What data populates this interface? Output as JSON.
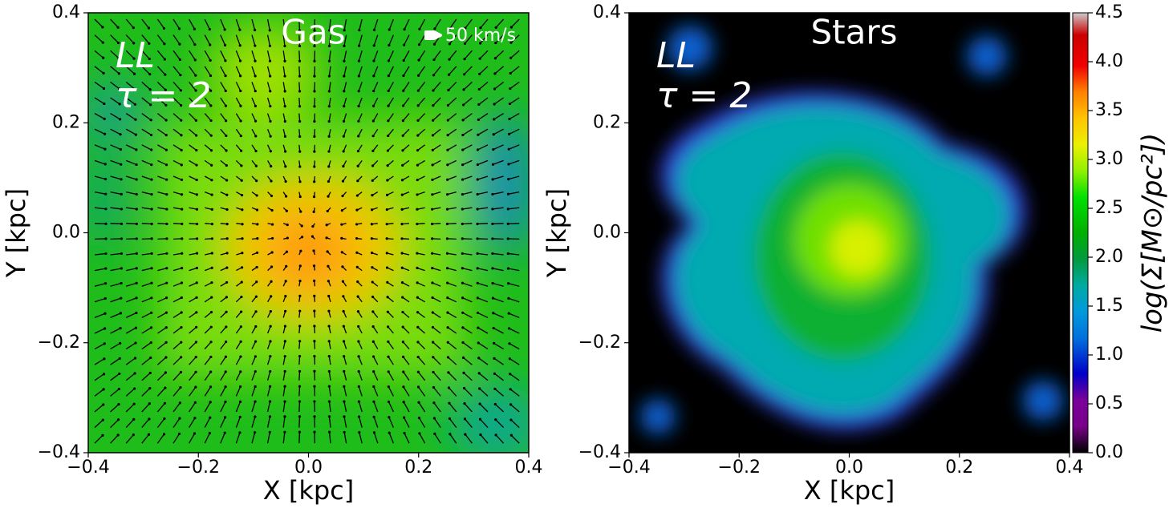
{
  "chart_data": [
    {
      "type": "heatmap",
      "title": "Gas",
      "annotation_lines": [
        "LL",
        "τ = 2"
      ],
      "quiver_key": "50 km/s",
      "xlabel": "X [kpc]",
      "ylabel": "Y [kpc]",
      "xlim": [
        -0.4,
        0.4
      ],
      "ylim": [
        -0.4,
        0.4
      ],
      "xticks": [
        {
          "value": -0.4,
          "label": "−0.4"
        },
        {
          "value": -0.2,
          "label": "−0.2"
        },
        {
          "value": 0,
          "label": "0.0"
        },
        0.2,
        0.4
      ],
      "yticks": [
        {
          "value": -0.4,
          "label": "−0.4"
        },
        {
          "value": -0.2,
          "label": "−0.2"
        },
        {
          "value": 0,
          "label": "0.0"
        },
        0.2,
        0.4
      ]
    },
    {
      "type": "heatmap",
      "title": "Stars",
      "annotation_lines": [
        "LL",
        "τ = 2"
      ],
      "xlabel": "X [kpc]",
      "ylabel": "Y [kpc]",
      "xlim": [
        -0.4,
        0.4
      ],
      "ylim": [
        -0.4,
        0.4
      ],
      "xticks": [
        {
          "value": -0.4,
          "label": "−0.4"
        },
        {
          "value": -0.2,
          "label": "−0.2"
        },
        {
          "value": 0,
          "label": "0.0"
        },
        0.2,
        0.4
      ],
      "yticks": [
        {
          "value": -0.4,
          "label": "−0.4"
        },
        {
          "value": -0.2,
          "label": "−0.2"
        },
        {
          "value": 0,
          "label": "0.0"
        },
        0.2,
        0.4
      ],
      "colorbar": {
        "label": "log(Σ[M⊙/pc²])",
        "lim": [
          0,
          4.5
        ],
        "ticks": [
          {
            "value": 0,
            "label": "0.0"
          },
          0.5,
          {
            "value": 1,
            "label": "1.0"
          },
          1.5,
          {
            "value": 2,
            "label": "2.0"
          },
          2.5,
          {
            "value": 3,
            "label": "3.0"
          },
          3.5,
          {
            "value": 4,
            "label": "4.0"
          },
          4.5
        ]
      }
    }
  ]
}
